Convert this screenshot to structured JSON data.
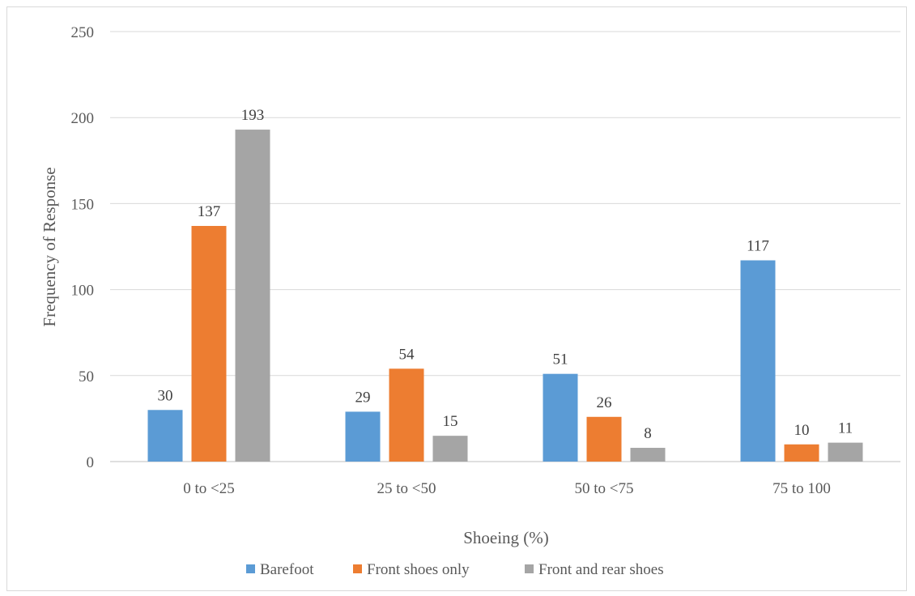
{
  "chart_data": {
    "type": "bar",
    "title": "",
    "xlabel": "Shoeing (%)",
    "ylabel": "Frequency of Response",
    "ylim": [
      0,
      250
    ],
    "yticks": [
      0,
      50,
      100,
      150,
      200,
      250
    ],
    "grid": true,
    "legend_position": "bottom",
    "categories": [
      "0 to <25",
      "25 to <50",
      "50 to <75",
      "75 to 100"
    ],
    "series": [
      {
        "name": "Barefoot",
        "color": "#5b9bd5",
        "values": [
          30,
          29,
          51,
          117
        ]
      },
      {
        "name": "Front shoes only",
        "color": "#ed7d31",
        "values": [
          137,
          54,
          26,
          10
        ]
      },
      {
        "name": "Front and rear shoes",
        "color": "#a5a5a5",
        "values": [
          193,
          15,
          8,
          11
        ]
      }
    ]
  }
}
